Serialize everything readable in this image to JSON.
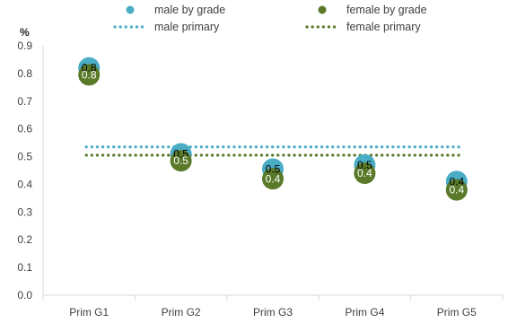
{
  "chart_data": {
    "type": "scatter",
    "unit_label": "%",
    "categories": [
      "Prim G1",
      "Prim G2",
      "Prim G3",
      "Prim G4",
      "Prim G5"
    ],
    "ylim": [
      0,
      0.9
    ],
    "yticks": [
      "0.0",
      "0.1",
      "0.2",
      "0.3",
      "0.4",
      "0.5",
      "0.6",
      "0.7",
      "0.8",
      "0.9"
    ],
    "grid": false,
    "legend_position": "top",
    "series": [
      {
        "name": "male by grade",
        "kind": "points",
        "color": "#4BACC6",
        "values": [
          0.82,
          0.51,
          0.455,
          0.47,
          0.41
        ],
        "data_labels": [
          "0.8",
          "0.5",
          "0.5",
          "0.5",
          "0.4"
        ],
        "label_color": "#000000"
      },
      {
        "name": "female by grade",
        "kind": "points",
        "color": "#5A7A2A",
        "values": [
          0.795,
          0.485,
          0.42,
          0.44,
          0.38
        ],
        "data_labels": [
          "0.8",
          "0.5",
          "0.4",
          "0.4",
          "0.4"
        ],
        "label_color": "#ffffff"
      },
      {
        "name": "male primary",
        "kind": "line",
        "color": "#4BACC6",
        "values": [
          0.535,
          0.535,
          0.535,
          0.535,
          0.535
        ]
      },
      {
        "name": "female primary",
        "kind": "line",
        "color": "#5A7A2A",
        "values": [
          0.505,
          0.505,
          0.505,
          0.505,
          0.505
        ]
      }
    ]
  }
}
